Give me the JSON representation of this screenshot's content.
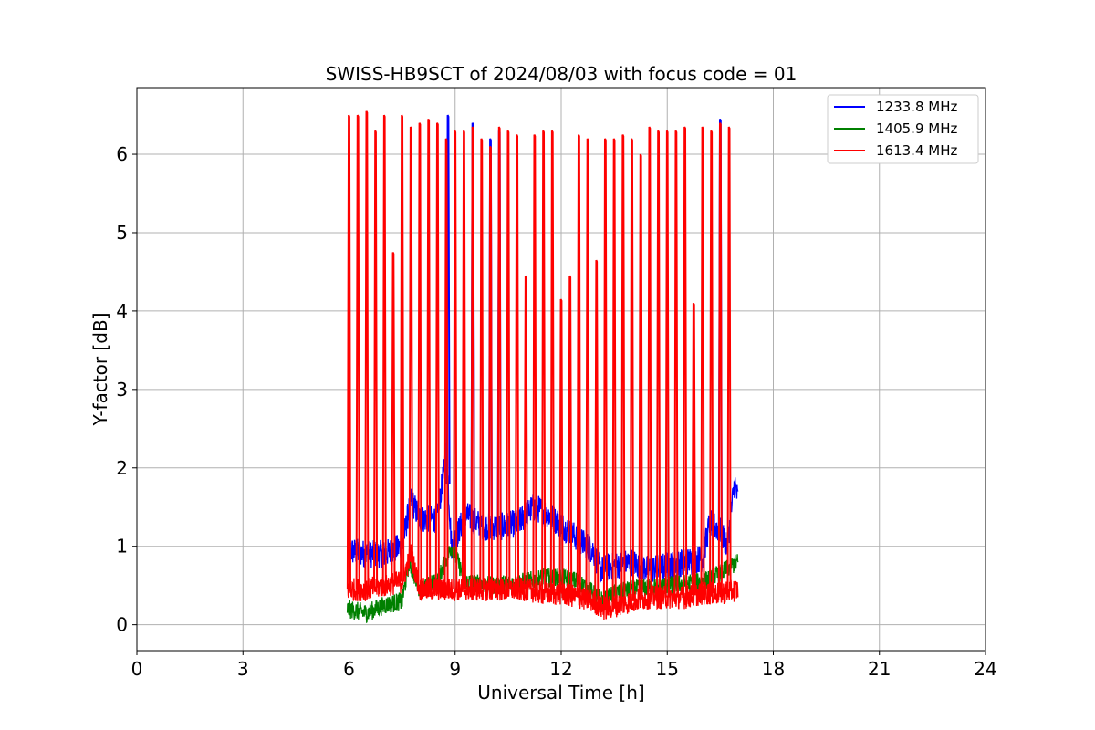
{
  "chart_data": {
    "type": "line",
    "title": "SWISS-HB9SCT of 2024/08/03 with focus code = 01",
    "xlabel": "Universal Time [h]",
    "ylabel": "Y-factor [dB]",
    "xlim": [
      0,
      24
    ],
    "ylim": [
      -0.33,
      6.85
    ],
    "xticks": [
      0,
      3,
      6,
      9,
      12,
      15,
      18,
      21,
      24
    ],
    "yticks": [
      0,
      1,
      2,
      3,
      4,
      5,
      6
    ],
    "grid": true,
    "legend_position": "top-right",
    "time_range_h": [
      5.95,
      17.0
    ],
    "series": [
      {
        "name": "1233.8 MHz",
        "color": "#0000ff",
        "baseline_x": [
          5.95,
          6.5,
          7.0,
          7.5,
          7.75,
          8.0,
          8.5,
          8.75,
          8.9,
          9.3,
          9.8,
          10.3,
          10.8,
          11.2,
          11.5,
          11.8,
          12.2,
          12.6,
          12.9,
          13.1,
          13.5,
          14.0,
          14.5,
          15.0,
          15.5,
          16.0,
          16.2,
          16.5,
          16.7,
          16.9,
          17.0
        ],
        "baseline_y": [
          0.95,
          0.9,
          0.9,
          1.0,
          1.6,
          1.35,
          1.35,
          2.2,
          1.0,
          1.4,
          1.25,
          1.25,
          1.3,
          1.5,
          1.45,
          1.35,
          1.2,
          1.05,
          0.95,
          0.7,
          0.75,
          0.8,
          0.7,
          0.75,
          0.8,
          0.85,
          1.3,
          1.2,
          1.0,
          1.8,
          1.6
        ],
        "noise_band": 0.18,
        "spike_times": [
          8.8,
          9.5,
          10.0,
          10.25,
          16.5
        ],
        "spike_peaks": [
          6.5,
          6.4,
          6.2,
          6.3,
          6.45
        ]
      },
      {
        "name": "1405.9 MHz",
        "color": "#008000",
        "baseline_x": [
          5.95,
          6.5,
          7.0,
          7.5,
          7.7,
          8.0,
          8.5,
          8.9,
          9.3,
          10.0,
          11.0,
          11.5,
          12.0,
          12.5,
          12.9,
          13.2,
          13.5,
          14.0,
          15.0,
          16.0,
          16.5,
          16.8,
          17.0
        ],
        "baseline_y": [
          0.2,
          0.15,
          0.25,
          0.3,
          0.8,
          0.45,
          0.55,
          1.0,
          0.55,
          0.5,
          0.55,
          0.6,
          0.6,
          0.55,
          0.4,
          0.3,
          0.4,
          0.45,
          0.5,
          0.55,
          0.65,
          0.75,
          0.8
        ],
        "noise_band": 0.12,
        "spike_times": [],
        "spike_peaks": []
      },
      {
        "name": "1613.4 MHz",
        "color": "#ff0000",
        "baseline_x": [
          5.95,
          6.5,
          7.0,
          7.5,
          7.75,
          8.0,
          8.5,
          9.0,
          9.5,
          10.0,
          10.5,
          11.0,
          11.5,
          12.0,
          12.5,
          12.9,
          13.2,
          13.6,
          14.0,
          14.5,
          15.0,
          15.5,
          16.0,
          16.5,
          17.0
        ],
        "baseline_y": [
          0.45,
          0.45,
          0.5,
          0.55,
          0.9,
          0.45,
          0.45,
          0.45,
          0.45,
          0.45,
          0.45,
          0.45,
          0.4,
          0.4,
          0.35,
          0.3,
          0.2,
          0.25,
          0.3,
          0.35,
          0.35,
          0.35,
          0.4,
          0.4,
          0.45
        ],
        "noise_band": 0.15,
        "spike_times": [
          6.0,
          6.25,
          6.5,
          6.75,
          7.0,
          7.25,
          7.5,
          7.75,
          8.0,
          8.25,
          8.5,
          8.75,
          9.0,
          9.25,
          9.5,
          9.75,
          10.0,
          10.25,
          10.5,
          10.75,
          11.0,
          11.25,
          11.5,
          11.75,
          12.0,
          12.25,
          12.5,
          12.75,
          13.0,
          13.25,
          13.5,
          13.75,
          14.0,
          14.25,
          14.5,
          14.75,
          15.0,
          15.25,
          15.5,
          15.75,
          16.0,
          16.25,
          16.5,
          16.75
        ],
        "spike_peaks": [
          6.5,
          6.5,
          6.55,
          6.3,
          6.5,
          4.75,
          6.5,
          6.35,
          6.4,
          6.45,
          6.4,
          6.2,
          6.3,
          6.3,
          6.35,
          6.2,
          6.1,
          6.35,
          6.3,
          6.25,
          4.45,
          6.25,
          6.3,
          6.3,
          4.15,
          4.45,
          6.25,
          6.2,
          4.65,
          6.2,
          6.2,
          6.25,
          6.2,
          6.0,
          6.35,
          6.3,
          6.3,
          6.3,
          6.35,
          4.1,
          6.35,
          6.3,
          6.4,
          6.35
        ]
      }
    ]
  }
}
